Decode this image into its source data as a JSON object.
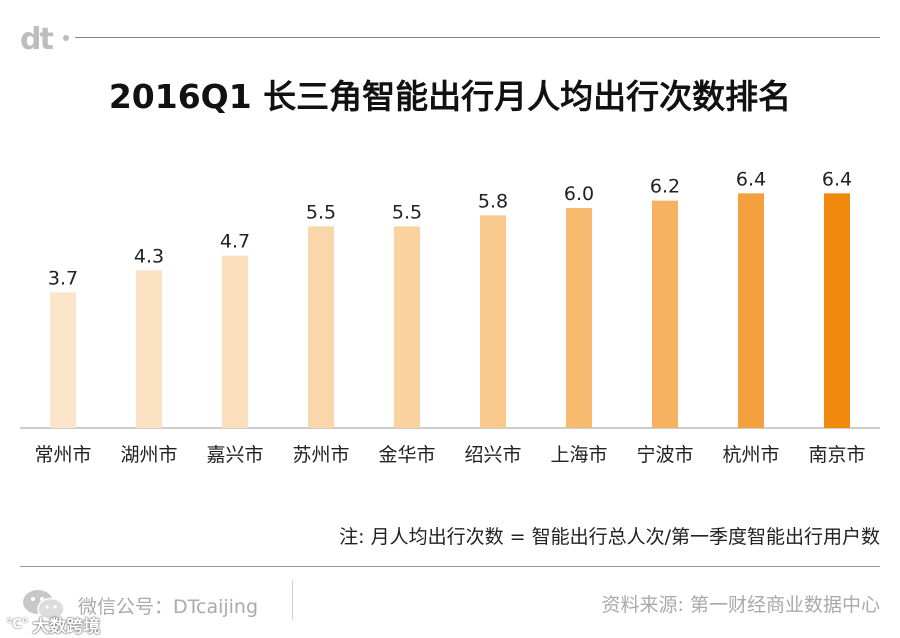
{
  "header": {
    "logo": "dt",
    "title": "2016Q1 长三角智能出行月人均出行次数排名"
  },
  "chart_data": {
    "type": "bar",
    "categories": [
      "常州市",
      "湖州市",
      "嘉兴市",
      "苏州市",
      "金华市",
      "绍兴市",
      "上海市",
      "宁波市",
      "杭州市",
      "南京市"
    ],
    "values": [
      3.7,
      4.3,
      4.7,
      5.5,
      5.5,
      5.8,
      6.0,
      6.2,
      6.4,
      6.4
    ],
    "labels": [
      "3.7",
      "4.3",
      "4.7",
      "5.5",
      "5.5",
      "5.8",
      "6.0",
      "6.2",
      "6.4",
      "6.4"
    ],
    "colors": [
      "#fbe5c9",
      "#fbe2c3",
      "#fbdfbc",
      "#fad7ab",
      "#fad2a0",
      "#f9c98c",
      "#f8bc70",
      "#f6b161",
      "#f4a03f",
      "#f0890e"
    ],
    "ylim": [
      0,
      6.6
    ],
    "grid": false
  },
  "footer": {
    "note": "注: 月人均出行次数 = 智能出行总人次/第一季度智能出行用户数",
    "account": "微信公号：DTcaijing",
    "source": "资料来源: 第一财经商业数据中心",
    "watermark": "大数跨境",
    "watermark_icon": "℃°"
  }
}
